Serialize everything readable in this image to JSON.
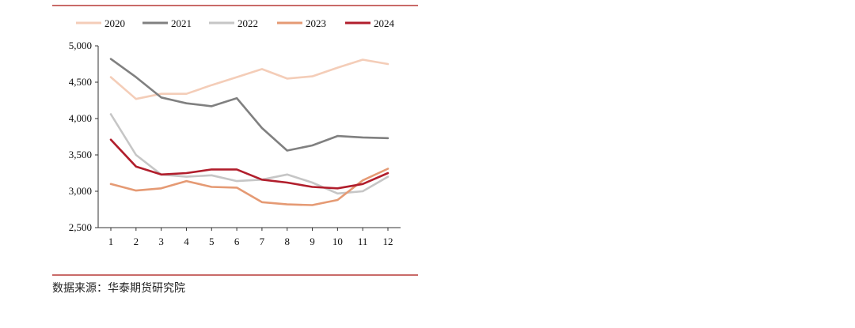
{
  "chart_data": {
    "type": "line",
    "categories": [
      "1",
      "2",
      "3",
      "4",
      "5",
      "6",
      "7",
      "8",
      "9",
      "10",
      "11",
      "12"
    ],
    "ylim": [
      2500,
      5000
    ],
    "yticks": [
      "2,500",
      "3,000",
      "3,500",
      "4,000",
      "4,500",
      "5,000"
    ],
    "ytick_values": [
      2500,
      3000,
      3500,
      4000,
      4500,
      5000
    ],
    "grid": false,
    "legend_position": "top",
    "series": [
      {
        "name": "2020",
        "color": "#f4cdb8",
        "values": [
          4570,
          4270,
          4340,
          4340,
          4460,
          4570,
          4680,
          4550,
          4580,
          4700,
          4810,
          4750
        ]
      },
      {
        "name": "2021",
        "color": "#808080",
        "values": [
          4820,
          4570,
          4290,
          4210,
          4170,
          4280,
          3870,
          3560,
          3630,
          3760,
          3740,
          3730
        ]
      },
      {
        "name": "2022",
        "color": "#c6c6c6",
        "values": [
          4060,
          3500,
          3230,
          3200,
          3220,
          3140,
          3160,
          3230,
          3120,
          2970,
          3000,
          3200
        ]
      },
      {
        "name": "2023",
        "color": "#e59a74",
        "values": [
          3100,
          3010,
          3040,
          3140,
          3060,
          3050,
          2850,
          2820,
          2810,
          2880,
          3150,
          3310
        ]
      },
      {
        "name": "2024",
        "color": "#b11e2c",
        "values": [
          3710,
          3340,
          3230,
          3250,
          3300,
          3300,
          3160,
          3120,
          3060,
          3040,
          3100,
          3250
        ]
      }
    ]
  },
  "source": "数据来源：华泰期货研究院"
}
